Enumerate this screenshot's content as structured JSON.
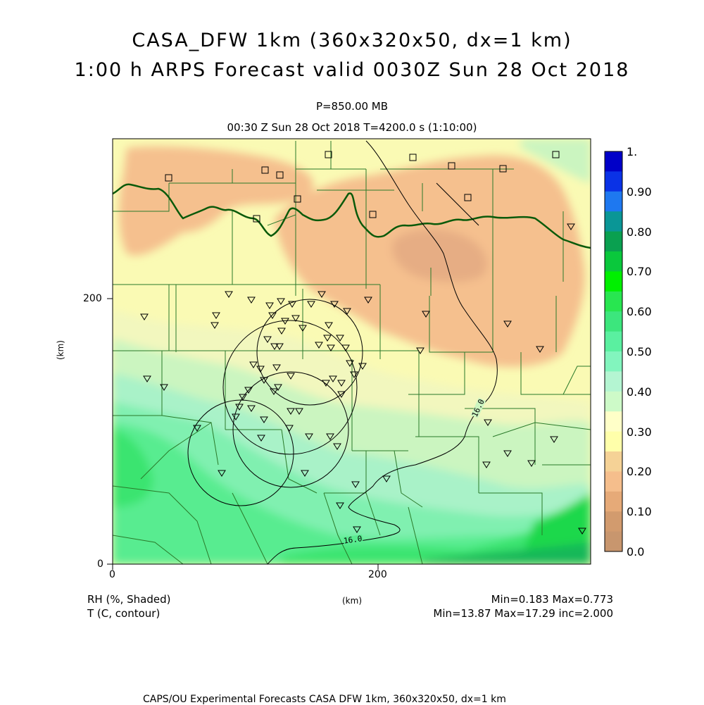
{
  "header": {
    "title_line1": "CASA_DFW 1km (360x320x50, dx=1 km)",
    "title_line2": "1:00 h ARPS Forecast valid 0030Z Sun 28 Oct 2018",
    "level": "P=850.00 MB",
    "time_info": "00:30 Z Sun 28 Oct 2018   T=4200.0 s (1:10:00)"
  },
  "axes": {
    "y_label": "(km)",
    "x_label": "(km)",
    "x_ticks": [
      "0",
      "200"
    ],
    "y_ticks": [
      "0",
      "200"
    ]
  },
  "colorbar": {
    "labels": [
      "1.",
      "0.90",
      "0.80",
      "0.70",
      "0.60",
      "0.50",
      "0.40",
      "0.30",
      "0.20",
      "0.10",
      "0.0"
    ],
    "colors": [
      "#0000c8",
      "#0a32e6",
      "#1e78f0",
      "#0a9696",
      "#0aa050",
      "#0ac83c",
      "#00f000",
      "#28e650",
      "#3ce67d",
      "#5af0a0",
      "#82f5be",
      "#b4f5d2",
      "#cdfac8",
      "#ffffc8",
      "#ffffaa",
      "#f5d296",
      "#f5be8c",
      "#e6aa78",
      "#d29b6e",
      "#c8966e"
    ]
  },
  "contours": [
    {
      "label": "16.0"
    },
    {
      "label": "16.0"
    }
  ],
  "legend_left": {
    "line1": "RH (%, Shaded)",
    "line2": "T (C, contour)"
  },
  "stats": {
    "rh": "Min=0.183 Max=0.773",
    "t": "Min=13.87 Max=17.29 inc=2.000"
  },
  "footer": "CAPS/OU Experimental Forecasts  CASA DFW 1km, 360x320x50, dx=1 km",
  "map_colors": {
    "rh_020": "#f5c08e",
    "rh_015": "#e6ad84",
    "rh_030": "#fafab4",
    "rh_035": "#f2f7be",
    "rh_040": "#cbf5c0",
    "rh_045": "#a9f2c8",
    "rh_050": "#80f0b0",
    "rh_055": "#58ec90",
    "rh_060": "#3ae470",
    "rh_065": "#1cd84c",
    "rh_070": "#12b858",
    "boundary": "#0a5a0a",
    "county": "#2a7a2a"
  }
}
